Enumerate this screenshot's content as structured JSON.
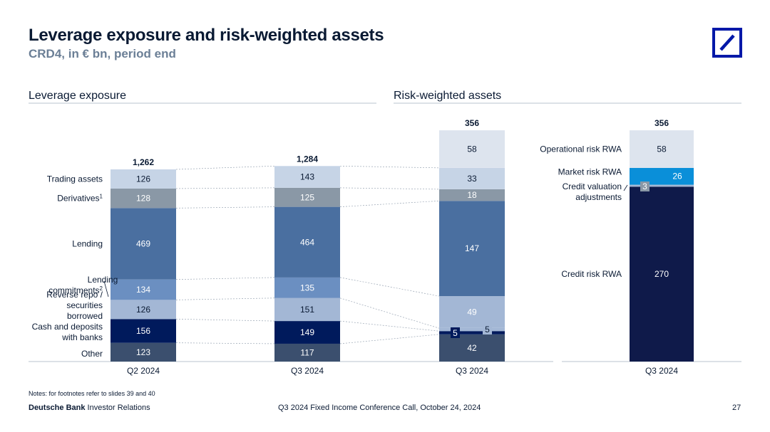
{
  "header": {
    "title": "Leverage exposure and risk-weighted assets",
    "subtitle": "CRD4, in € bn, period end"
  },
  "logo": {
    "icon": "deutsche-bank-logo",
    "color": "#0018a8"
  },
  "footer": {
    "notes": "Notes: for footnotes refer to slides 39 and 40",
    "brand_bold": "Deutsche Bank",
    "brand_rest": " Investor Relations",
    "event": "Q3 2024 Fixed Income Conference Call, October 24, 2024",
    "page": "27"
  },
  "colors": {
    "trading_assets": "#c6d4e6",
    "derivatives": "#8a98a6",
    "lending": "#4a6fa0",
    "lending_commitments": "#6b8fc1",
    "reverse_repo": "#a3b7d5",
    "cash": "#001a5c",
    "other": "#3b4f6e",
    "operational": "#dde4ee",
    "market": "#0a8fd9",
    "cva": "#a3b7d5",
    "credit": "#0f1a4a"
  },
  "chart_data": [
    {
      "type": "bar",
      "title": "Leverage exposure",
      "stacked": true,
      "categories": [
        "Q2 2024",
        "Q3 2024"
      ],
      "series": [
        {
          "name": "Other",
          "values": [
            123,
            117
          ]
        },
        {
          "name": "Cash and deposits with banks",
          "values": [
            156,
            149
          ]
        },
        {
          "name": "Reverse repo / securities borrowed",
          "values": [
            126,
            151
          ]
        },
        {
          "name": "Lending commitments2",
          "values": [
            134,
            135
          ]
        },
        {
          "name": "Lending",
          "values": [
            469,
            464
          ]
        },
        {
          "name": "Derivatives1",
          "values": [
            128,
            125
          ]
        },
        {
          "name": "Trading assets",
          "values": [
            126,
            143
          ]
        }
      ],
      "totals": [
        "1,262",
        "1,284"
      ]
    },
    {
      "type": "bar",
      "title": "Risk-weighted assets",
      "stacked": true,
      "categories": [
        "Q3 2024"
      ],
      "series": [
        {
          "values": [
            42
          ]
        },
        {
          "values": [
            5
          ]
        },
        {
          "values": [
            5
          ]
        },
        {
          "values": [
            49
          ]
        },
        {
          "values": [
            147
          ]
        },
        {
          "values": [
            18
          ]
        },
        {
          "values": [
            33
          ]
        },
        {
          "values": [
            58
          ]
        }
      ],
      "totals": [
        "356"
      ]
    },
    {
      "type": "bar",
      "stacked": true,
      "categories": [
        "Q3 2024"
      ],
      "series": [
        {
          "name": "Credit risk RWA",
          "values": [
            270
          ]
        },
        {
          "name": "Credit valuation adjustments",
          "values": [
            3
          ]
        },
        {
          "name": "Market risk RWA",
          "values": [
            26
          ]
        },
        {
          "name": "Operational risk RWA",
          "values": [
            58
          ]
        }
      ],
      "totals": [
        "356"
      ]
    }
  ]
}
